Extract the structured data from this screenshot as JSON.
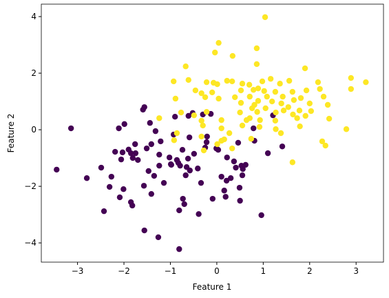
{
  "chart_data": {
    "type": "scatter",
    "xlabel": "Feature 1",
    "ylabel": "Feature 2",
    "xlim": [
      -3.78,
      3.59
    ],
    "ylim": [
      -4.68,
      4.44
    ],
    "xticks": [
      {
        "value": -3,
        "label": "−3"
      },
      {
        "value": -2,
        "label": "−2"
      },
      {
        "value": -1,
        "label": "−1"
      },
      0,
      1,
      2,
      3
    ],
    "yticks": [
      {
        "value": -4,
        "label": "−4"
      },
      {
        "value": -2,
        "label": "−2"
      },
      0,
      2,
      4
    ],
    "series": [
      {
        "color": "#440154",
        "x": [
          -3.45,
          -3.14,
          -2.8,
          -2.49,
          -2.43,
          -2.31,
          -2.27,
          -2.19,
          -2.11,
          -2.09,
          -2.03,
          -2.01,
          -1.99,
          -2.06,
          -1.9,
          -1.85,
          -1.85,
          -1.82,
          -1.81,
          -1.76,
          -1.75,
          -1.7,
          -1.59,
          -1.56,
          -1.56,
          -1.57,
          -1.51,
          -1.47,
          -1.44,
          -1.41,
          -1.41,
          -1.35,
          -1.32,
          -1.26,
          -1.24,
          -1.24,
          -1.21,
          -1.14,
          -1.02,
          -0.99,
          -0.98,
          -0.93,
          -0.9,
          -0.86,
          -0.83,
          -0.81,
          -0.81,
          -0.79,
          -0.74,
          -0.73,
          -0.7,
          -0.67,
          -0.65,
          -0.62,
          -0.61,
          -0.59,
          -0.58,
          -0.52,
          -0.49,
          -0.41,
          -0.39,
          -0.34,
          -0.3,
          -0.25,
          -0.22,
          -0.21,
          -0.13,
          -0.09,
          -0.01,
          0.03,
          0.1,
          0.16,
          0.19,
          0.21,
          0.22,
          0.3,
          0.37,
          0.41,
          0.46,
          0.49,
          0.5,
          0.53,
          0.55,
          0.56,
          0.62,
          0.81,
          0.79,
          0.96,
          1.1,
          1.21,
          1.41
        ],
        "values": [
          -1.41,
          0.05,
          -1.71,
          -1.34,
          -2.88,
          -2.02,
          -1.66,
          -0.78,
          0.05,
          -2.39,
          -0.8,
          -2.1,
          0.2,
          -1.05,
          -0.7,
          -0.83,
          -2.56,
          -2.68,
          -1.0,
          -0.51,
          -0.83,
          -1.07,
          0.71,
          0.8,
          -3.56,
          -1.98,
          -0.66,
          -1.46,
          0.24,
          -0.51,
          -2.27,
          -1.63,
          -0.05,
          -3.8,
          -0.88,
          -1.27,
          -0.41,
          -1.88,
          -0.98,
          -1.22,
          -1.24,
          -0.17,
          0.46,
          -1.07,
          -1.17,
          -2.85,
          -4.22,
          -1.27,
          -0.71,
          -2.44,
          -2.63,
          -1.61,
          -1.32,
          -1.02,
          0.49,
          -0.27,
          -1.44,
          0.59,
          -0.85,
          -1.37,
          -2.98,
          -1.88,
          0.54,
          -0.63,
          -0.44,
          -0.24,
          0.56,
          -2.44,
          -0.66,
          -0.71,
          -1.66,
          -2.15,
          -2.37,
          -1.8,
          -0.98,
          -1.71,
          -1.12,
          -1.34,
          -0.46,
          -2.05,
          -2.51,
          -1.27,
          -1.61,
          -1.39,
          -1.24,
          -0.39,
          0.05,
          -3.02,
          -0.83,
          0.51,
          -0.59
        ]
      },
      {
        "color": "#fde725",
        "x": [
          1.04,
          0.04,
          -0.04,
          0.34,
          0.86,
          0.86,
          -0.67,
          1.9,
          2.89,
          3.21,
          2.89,
          -0.93,
          -0.61,
          -0.22,
          -0.07,
          0.01,
          0.22,
          0.33,
          0.55,
          0.7,
          0.98,
          1.16,
          1.36,
          1.56,
          2.18,
          2.22,
          2.3,
          1.93,
          1.63,
          1.26,
          -0.46,
          -0.33,
          -0.1,
          0.52,
          0.79,
          0.89,
          1.02,
          -0.25,
          0.04,
          0.39,
          0.71,
          1.08,
          1.42,
          1.81,
          0.89,
          1.19,
          1.66,
          -0.89,
          0.52,
          0.81,
          1.39,
          2.0,
          2.39,
          0.76,
          1.05,
          1.54,
          1.78,
          2.03,
          -0.22,
          -0.49,
          -0.77,
          0.5,
          0.87,
          1.27,
          1.44,
          1.64,
          1.91,
          -1.24,
          0.1,
          0.64,
          0.71,
          0.93,
          1.26,
          1.73,
          2.42,
          -0.33,
          -0.3,
          0.1,
          0.55,
          0.92,
          1.27,
          1.79,
          2.79,
          1.38,
          -0.86,
          0.27,
          -0.33,
          -0.92,
          0.74,
          0.16,
          0.1,
          0.01,
          -0.28,
          0.33,
          2.27,
          2.34,
          1.63
        ],
        "values": [
          3.98,
          3.07,
          2.73,
          2.61,
          2.88,
          2.32,
          2.24,
          2.17,
          1.83,
          1.68,
          1.44,
          1.71,
          1.76,
          1.68,
          1.66,
          1.61,
          1.73,
          1.71,
          1.63,
          1.59,
          1.71,
          1.8,
          1.63,
          1.73,
          1.68,
          1.44,
          1.17,
          1.39,
          1.34,
          1.34,
          1.39,
          1.29,
          1.32,
          1.39,
          1.41,
          1.46,
          1.37,
          1.15,
          1.1,
          1.15,
          1.17,
          1.17,
          1.17,
          1.12,
          1.02,
          1.0,
          1.05,
          1.1,
          0.95,
          0.88,
          0.93,
          0.93,
          0.88,
          0.76,
          0.76,
          0.8,
          0.68,
          0.66,
          0.63,
          0.51,
          0.61,
          0.61,
          0.63,
          0.61,
          0.68,
          0.54,
          0.49,
          0.41,
          0.34,
          0.34,
          0.41,
          0.34,
          0.32,
          0.41,
          0.39,
          0.32,
          0.15,
          0.05,
          0.15,
          0.1,
          0.02,
          0.12,
          0.02,
          -0.12,
          -0.12,
          -0.12,
          -0.24,
          -0.37,
          -0.32,
          -0.34,
          -0.39,
          -0.51,
          -0.73,
          -0.66,
          -0.41,
          -0.56,
          -1.15
        ]
      }
    ]
  }
}
